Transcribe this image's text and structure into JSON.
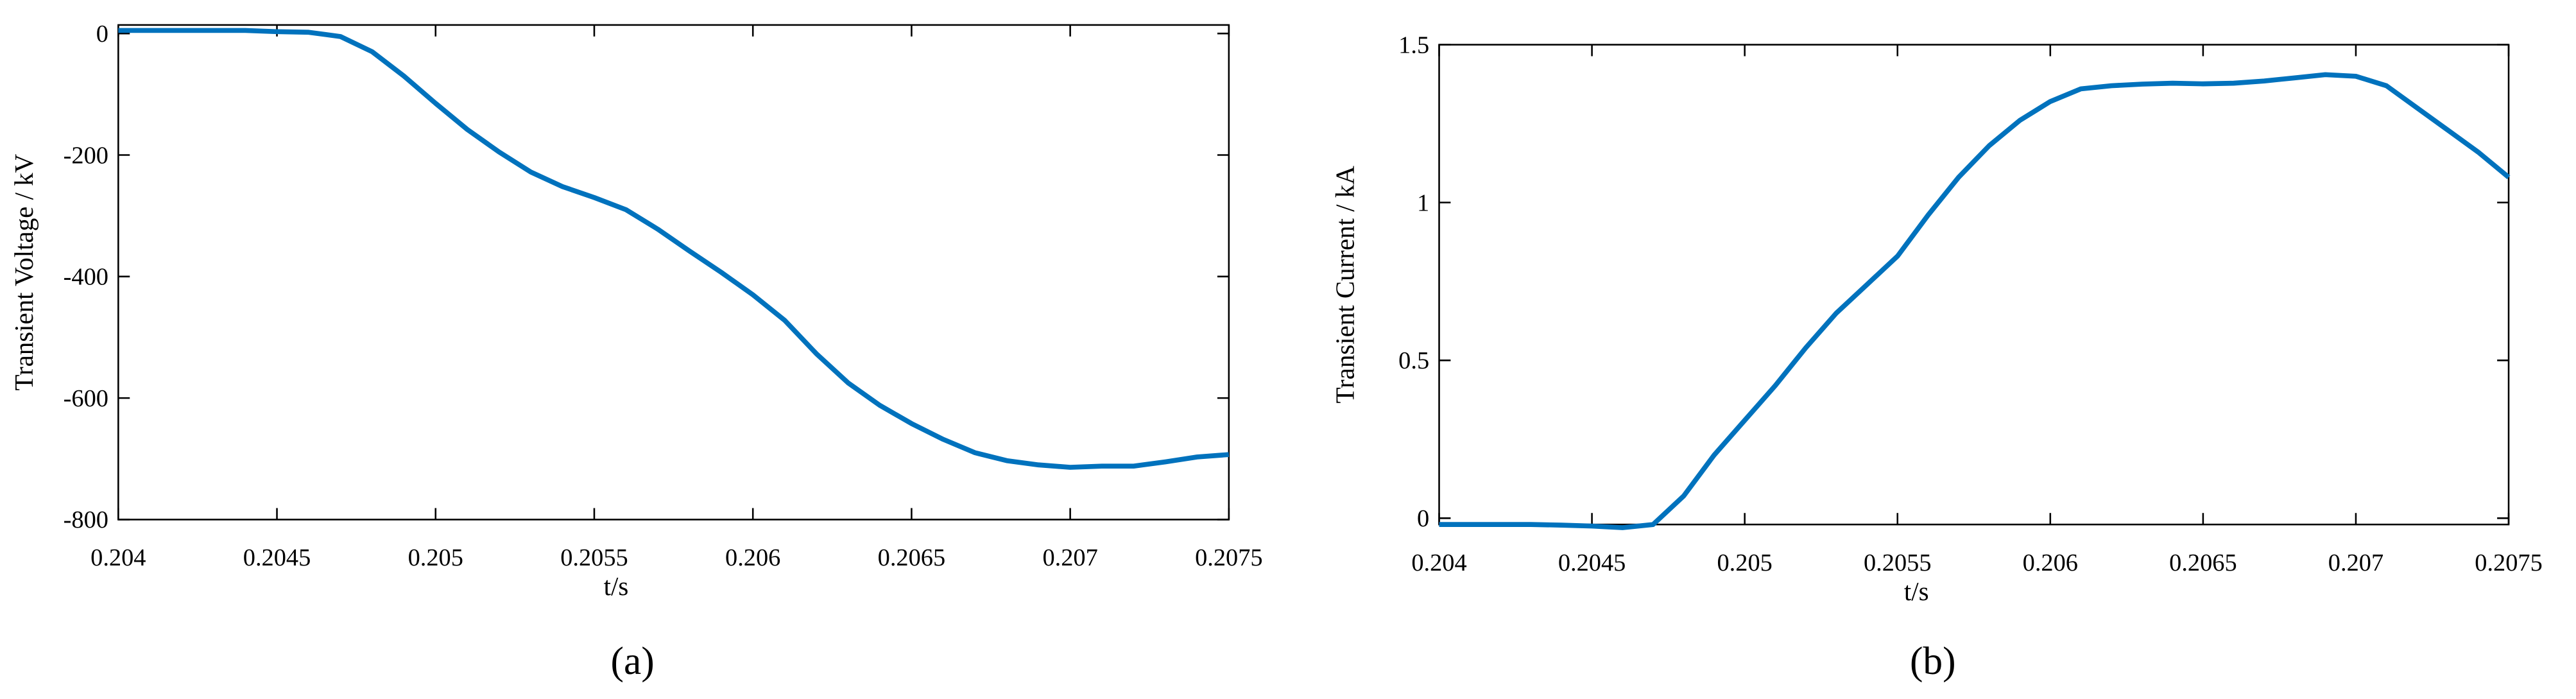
{
  "chart_data": [
    {
      "type": "line",
      "caption": "(a)",
      "xlabel": "t/s",
      "ylabel": "Transient Voltage / kV",
      "color": "#0072bd",
      "x": [
        0.204,
        0.2041,
        0.2042,
        0.2043,
        0.2044,
        0.2045,
        0.2046,
        0.2047,
        0.2048,
        0.2049,
        0.205,
        0.2051,
        0.2052,
        0.2053,
        0.2054,
        0.2055,
        0.2056,
        0.2057,
        0.2058,
        0.2059,
        0.206,
        0.2061,
        0.2062,
        0.2063,
        0.2064,
        0.2065,
        0.2066,
        0.2067,
        0.2068,
        0.2069,
        0.207,
        0.2071,
        0.2072,
        0.2073,
        0.2074,
        0.2075
      ],
      "values": [
        5,
        5,
        5,
        5,
        5,
        3,
        2,
        -5,
        -30,
        -70,
        -115,
        -158,
        -195,
        -228,
        -252,
        -270,
        -290,
        -322,
        -358,
        -393,
        -430,
        -472,
        -527,
        -575,
        -612,
        -642,
        -668,
        -690,
        -703,
        -710,
        -714,
        -712,
        -712,
        -705,
        -697,
        -693
      ],
      "xlim": [
        0.204,
        0.2075
      ],
      "xticks": [
        0.204,
        0.2045,
        0.205,
        0.2055,
        0.206,
        0.2065,
        0.207,
        0.2075
      ],
      "ylim": [
        -800,
        14
      ],
      "yticks": [
        0,
        -200,
        -400,
        -600,
        -800
      ]
    },
    {
      "type": "line",
      "caption": "(b)",
      "xlabel": "t/s",
      "ylabel": "Transient Current / kA",
      "color": "#0072bd",
      "x": [
        0.204,
        0.2041,
        0.2042,
        0.2043,
        0.2044,
        0.2045,
        0.2046,
        0.2047,
        0.2048,
        0.2049,
        0.205,
        0.2051,
        0.2052,
        0.2053,
        0.2054,
        0.2055,
        0.2056,
        0.2057,
        0.2058,
        0.2059,
        0.206,
        0.2061,
        0.2062,
        0.2063,
        0.2064,
        0.2065,
        0.2066,
        0.2067,
        0.2068,
        0.2069,
        0.207,
        0.2071,
        0.2072,
        0.2073,
        0.2074,
        0.2075
      ],
      "values": [
        -0.02,
        -0.02,
        -0.02,
        -0.02,
        -0.022,
        -0.025,
        -0.03,
        -0.02,
        0.07,
        0.2,
        0.31,
        0.42,
        0.54,
        0.65,
        0.74,
        0.83,
        0.96,
        1.08,
        1.18,
        1.26,
        1.32,
        1.36,
        1.37,
        1.375,
        1.378,
        1.376,
        1.378,
        1.385,
        1.395,
        1.405,
        1.4,
        1.37,
        1.3,
        1.23,
        1.16,
        1.08
      ],
      "xlim": [
        0.204,
        0.2075
      ],
      "xticks": [
        0.204,
        0.2045,
        0.205,
        0.2055,
        0.206,
        0.2065,
        0.207,
        0.2075
      ],
      "ylim": [
        -0.02,
        1.5
      ],
      "yticks": [
        0,
        0.5,
        1,
        1.5
      ]
    }
  ]
}
